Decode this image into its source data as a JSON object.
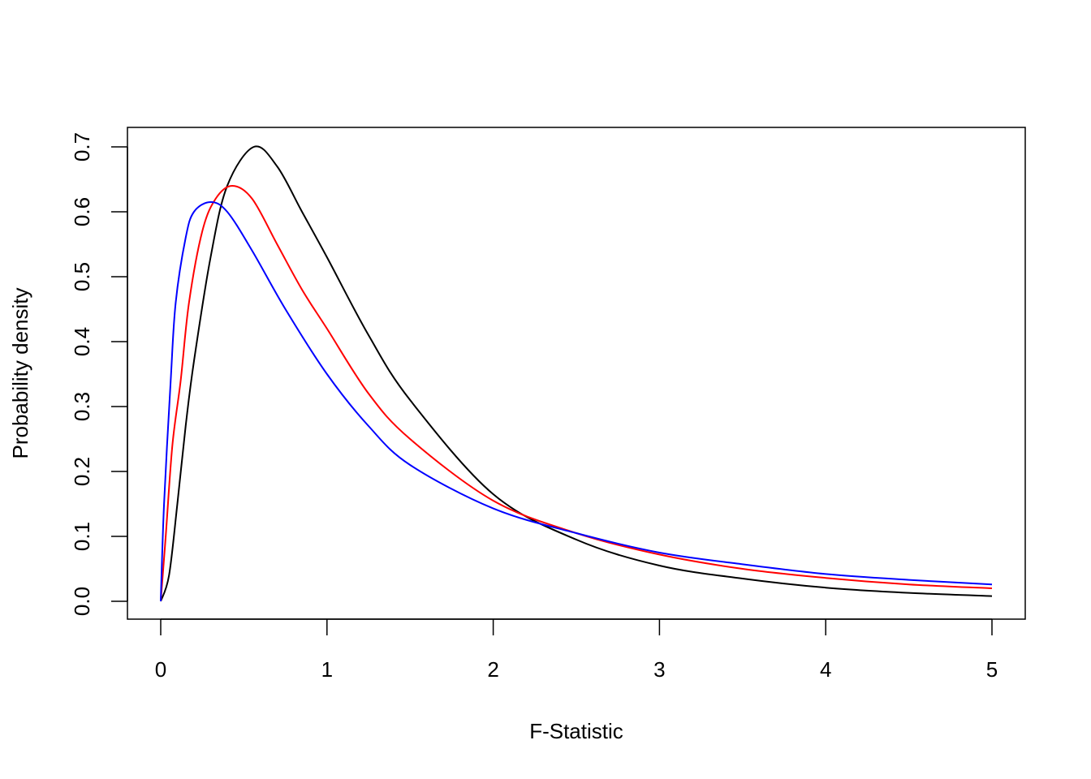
{
  "chart_data": {
    "type": "line",
    "title": "",
    "xlabel": "F-Statistic",
    "ylabel": "Probability density",
    "xlim": [
      0,
      5
    ],
    "ylim": [
      0,
      0.7
    ],
    "grid": false,
    "xticks": [
      "0",
      "1",
      "2",
      "3",
      "4",
      "5"
    ],
    "yticks": [
      "0.0",
      "0.1",
      "0.2",
      "0.3",
      "0.4",
      "0.5",
      "0.6",
      "0.7"
    ],
    "series": [
      {
        "color": "#000000",
        "x": [
          0,
          0.05,
          0.1,
          0.15,
          0.2,
          0.3,
          0.4,
          0.56,
          0.7,
          0.85,
          1,
          1.25,
          1.5,
          2,
          2.5,
          3,
          3.5,
          4,
          4.5,
          5
        ],
        "y": [
          0,
          0.04,
          0.15,
          0.27,
          0.37,
          0.53,
          0.64,
          0.7,
          0.67,
          0.6,
          0.53,
          0.41,
          0.31,
          0.165,
          0.095,
          0.055,
          0.035,
          0.021,
          0.013,
          0.008
        ]
      },
      {
        "color": "#ff0000",
        "x": [
          0,
          0.03,
          0.07,
          0.12,
          0.17,
          0.25,
          0.33,
          0.43,
          0.55,
          0.7,
          0.85,
          1,
          1.25,
          1.5,
          2,
          2.5,
          3,
          3.5,
          4,
          4.5,
          5
        ],
        "y": [
          0,
          0.1,
          0.24,
          0.34,
          0.46,
          0.57,
          0.62,
          0.64,
          0.62,
          0.55,
          0.48,
          0.42,
          0.32,
          0.25,
          0.155,
          0.105,
          0.072,
          0.05,
          0.036,
          0.026,
          0.02
        ]
      },
      {
        "color": "#0000ff",
        "x": [
          0,
          0.02,
          0.06,
          0.09,
          0.15,
          0.2,
          0.3,
          0.4,
          0.55,
          0.75,
          1,
          1.25,
          1.5,
          2,
          2.5,
          3,
          3.5,
          4,
          4.5,
          5
        ],
        "y": [
          0,
          0.15,
          0.34,
          0.46,
          0.56,
          0.6,
          0.615,
          0.6,
          0.54,
          0.45,
          0.35,
          0.27,
          0.21,
          0.143,
          0.105,
          0.075,
          0.057,
          0.042,
          0.033,
          0.026
        ]
      }
    ]
  }
}
